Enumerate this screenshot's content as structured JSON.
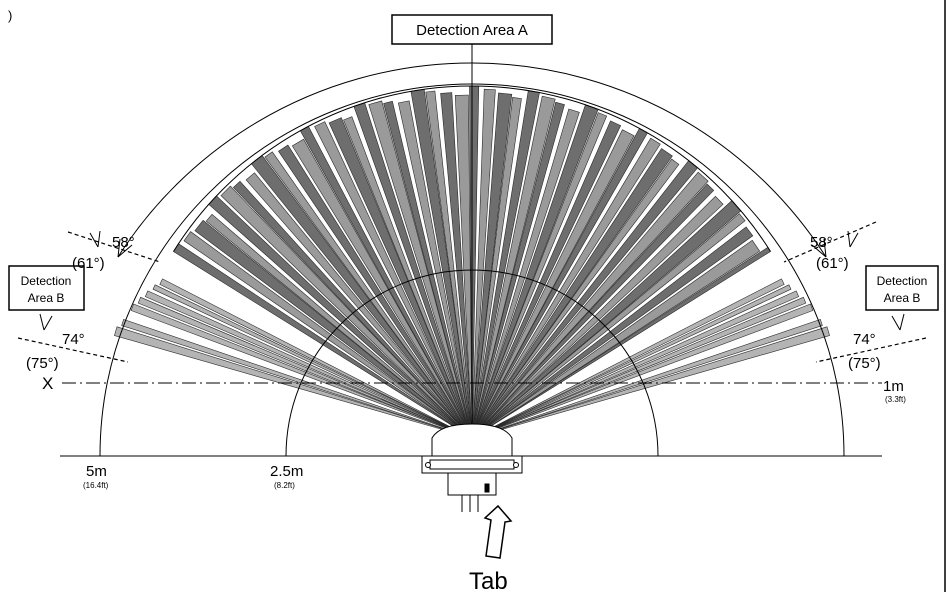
{
  "corner_mark": ")",
  "area_a_label": "Detection Area A",
  "area_b_label_line1": "Detection",
  "area_b_label_line2": "Area B",
  "angles": {
    "left_upper": "58°",
    "left_upper_alt": "(61°)",
    "left_lower": "74°",
    "left_lower_alt": "(75°)",
    "right_upper": "58°",
    "right_upper_alt": "(61°)",
    "right_lower": "74°",
    "right_lower_alt": "(75°)"
  },
  "axis_label": "X",
  "distances": [
    {
      "label": "5m",
      "sub": "(16.4ft)"
    },
    {
      "label": "2.5m",
      "sub": "(8.2ft)"
    },
    {
      "label": "1m",
      "sub": "(3.3ft)"
    }
  ],
  "tab_label": "Tab",
  "colors": {
    "beam_dark": "#6e6e6e",
    "beam_light": "#9a9a9a",
    "beam_side": "#b4b4b4",
    "line": "#000000"
  }
}
